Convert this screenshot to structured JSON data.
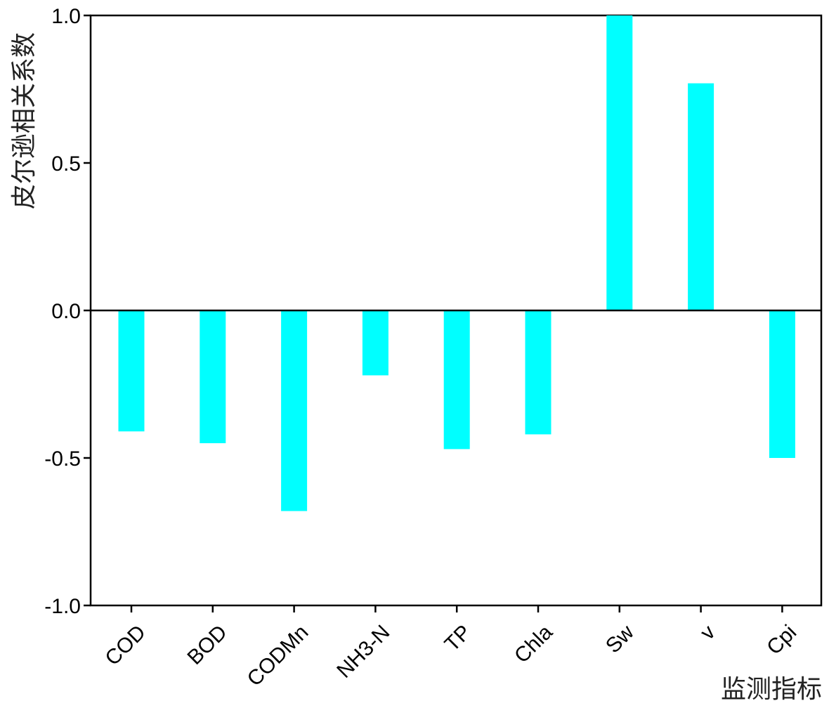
{
  "chart_data": {
    "type": "bar",
    "title": "",
    "xlabel": "监测指标",
    "ylabel": "皮尔逊相关系数",
    "categories": [
      "COD",
      "BOD",
      "CODMn",
      "NH3-N",
      "TP",
      "Chla",
      "Sw",
      "v",
      "Cpi"
    ],
    "values": [
      -0.41,
      -0.45,
      -0.68,
      -0.22,
      -0.47,
      -0.42,
      1.0,
      0.77,
      -0.5
    ],
    "ylim": [
      -1.0,
      1.0
    ],
    "yticks": [
      "-1.0",
      "-0.5",
      "0.0",
      "0.5",
      "1.0"
    ],
    "grid": false,
    "legend": "none",
    "bar_color": "#00ffff"
  }
}
